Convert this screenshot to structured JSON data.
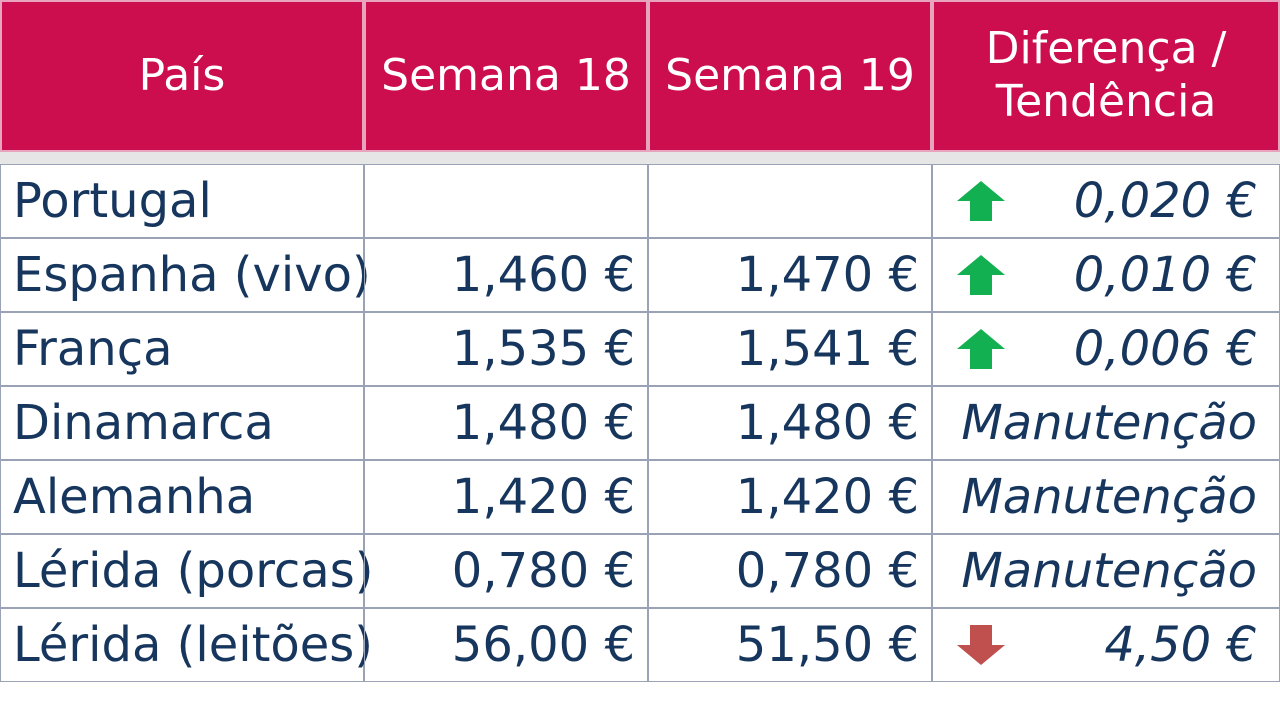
{
  "headers": {
    "country": "País",
    "week18": "Semana 18",
    "week19": "Semana 19",
    "diff_line1": "Diferença /",
    "diff_line2": "Tendência"
  },
  "rows": [
    {
      "country": "Portugal",
      "w18": "",
      "w19": "",
      "trend": "up",
      "diff": "0,020 €"
    },
    {
      "country": "Espanha (vivo)",
      "w18": "1,460 €",
      "w19": "1,470 €",
      "trend": "up",
      "diff": "0,010 €"
    },
    {
      "country": "França",
      "w18": "1,535 €",
      "w19": "1,541 €",
      "trend": "up",
      "diff": "0,006 €"
    },
    {
      "country": "Dinamarca",
      "w18": "1,480 €",
      "w19": "1,480 €",
      "trend": "none",
      "diff": "Manutenção"
    },
    {
      "country": "Alemanha",
      "w18": "1,420 €",
      "w19": "1,420 €",
      "trend": "none",
      "diff": "Manutenção"
    },
    {
      "country": "Lérida (porcas)",
      "w18": "0,780 €",
      "w19": "0,780 €",
      "trend": "none",
      "diff": "Manutenção"
    },
    {
      "country": "Lérida (leitões)",
      "w18": "56,00 €",
      "w19": "51,50 €",
      "trend": "down",
      "diff": "4,50 €"
    }
  ],
  "colors": {
    "header_bg": "#cc0e4e",
    "up_arrow": "#12b050",
    "down_arrow": "#c0504d",
    "text": "#17365d"
  }
}
